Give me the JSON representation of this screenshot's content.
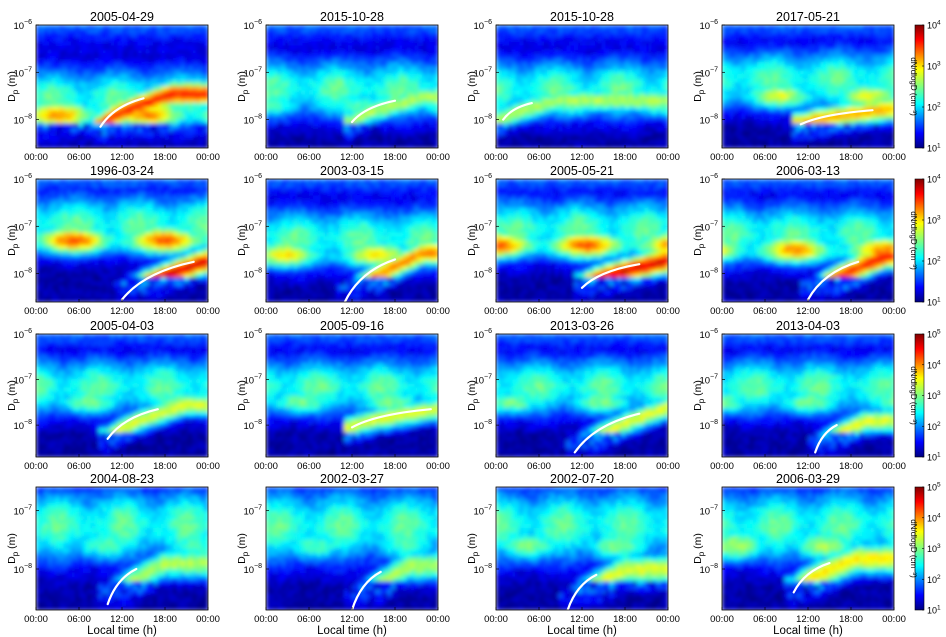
{
  "chart_data": {
    "type": "heatmap",
    "grid": "4x4",
    "x_tick_labels": [
      "00:00",
      "06:00",
      "12:00",
      "18:00",
      "00:00"
    ],
    "x_range_h": [
      0,
      24
    ],
    "xlabel": "Local time (h)",
    "ylabel_main": "D",
    "ylabel_sub": "p",
    "ylabel_unit": " (m)",
    "y_tick_base": "10",
    "y_scale": "log",
    "colorbar_label": "dN/dlogD (cm⁻³)",
    "colormap": "jet",
    "panels": [
      {
        "title": "2005-04-29",
        "y_ticks": [
          -6,
          -7,
          -8
        ],
        "ylim_exp": [
          -8.6,
          -6
        ],
        "band_exp": -7.9,
        "start_h": 9,
        "curve": [
          [
            9,
            -8.15
          ],
          [
            15,
            -7.55
          ]
        ],
        "hot": 0.85
      },
      {
        "title": "2015-10-28",
        "y_ticks": [
          -6,
          -7,
          -8
        ],
        "ylim_exp": [
          -8.6,
          -6
        ],
        "band_exp": -7.7,
        "start_h": 12,
        "curve": [
          [
            12,
            -8.05
          ],
          [
            18,
            -7.6
          ]
        ],
        "hot": 0.55
      },
      {
        "title": "2015-10-28",
        "y_ticks": [
          -6,
          -7,
          -8
        ],
        "ylim_exp": [
          -8.6,
          -6
        ],
        "band_exp": -7.7,
        "start_h": 1,
        "curve": [
          [
            1,
            -8.0
          ],
          [
            5,
            -7.65
          ]
        ],
        "hot": 0.55
      },
      {
        "title": "2017-05-21",
        "y_ticks": [
          -6,
          -7,
          -8
        ],
        "ylim_exp": [
          -8.6,
          -6
        ],
        "band_exp": -7.5,
        "start_h": 11,
        "curve": [
          [
            11,
            -8.1
          ],
          [
            21,
            -7.8
          ]
        ],
        "hot": 0.7
      },
      {
        "title": "1996-03-24",
        "y_ticks": [
          -6,
          -7,
          -8
        ],
        "ylim_exp": [
          -8.6,
          -6
        ],
        "band_exp": -7.3,
        "start_h": 12,
        "curve": [
          [
            12,
            -8.55
          ],
          [
            22,
            -7.75
          ]
        ],
        "hot": 0.9
      },
      {
        "title": "2003-03-15",
        "y_ticks": [
          -6,
          -7,
          -8
        ],
        "ylim_exp": [
          -8.6,
          -6
        ],
        "band_exp": -7.6,
        "start_h": 11,
        "curve": [
          [
            11,
            -8.6
          ],
          [
            18,
            -7.7
          ]
        ],
        "hot": 0.75
      },
      {
        "title": "2005-05-21",
        "y_ticks": [
          -6,
          -7,
          -8
        ],
        "ylim_exp": [
          -8.6,
          -6
        ],
        "band_exp": -7.4,
        "start_h": 12,
        "curve": [
          [
            12,
            -8.3
          ],
          [
            20,
            -7.8
          ]
        ],
        "hot": 0.9
      },
      {
        "title": "2006-03-13",
        "y_ticks": [
          -6,
          -7,
          -8
        ],
        "ylim_exp": [
          -8.6,
          -6
        ],
        "band_exp": -7.5,
        "start_h": 12,
        "curve": [
          [
            12,
            -8.55
          ],
          [
            19,
            -7.75
          ]
        ],
        "hot": 0.85
      },
      {
        "title": "2005-04-03",
        "y_ticks": [
          -6,
          -7,
          -8
        ],
        "ylim_exp": [
          -8.7,
          -6
        ],
        "band_exp": -7.5,
        "start_h": 10,
        "curve": [
          [
            10,
            -8.3
          ],
          [
            17,
            -7.65
          ]
        ],
        "hot": 0.6
      },
      {
        "title": "2005-09-16",
        "y_ticks": [
          -6,
          -7,
          -8
        ],
        "ylim_exp": [
          -8.7,
          -6
        ],
        "band_exp": -7.5,
        "start_h": 12,
        "curve": [
          [
            12,
            -8.05
          ],
          [
            23,
            -7.65
          ]
        ],
        "hot": 0.6
      },
      {
        "title": "2013-03-26",
        "y_ticks": [
          -6,
          -7,
          -8
        ],
        "ylim_exp": [
          -8.7,
          -6
        ],
        "band_exp": -7.5,
        "start_h": 11,
        "curve": [
          [
            11,
            -8.6
          ],
          [
            20,
            -7.75
          ]
        ],
        "hot": 0.6
      },
      {
        "title": "2013-04-03",
        "y_ticks": [
          -6,
          -7,
          -8
        ],
        "ylim_exp": [
          -8.7,
          -6
        ],
        "band_exp": -7.5,
        "start_h": 13,
        "curve": [
          [
            13,
            -8.6
          ],
          [
            16,
            -8.0
          ]
        ],
        "hot": 0.6
      },
      {
        "title": "2004-08-23",
        "y_ticks": [
          -7,
          -8
        ],
        "ylim_exp": [
          -8.7,
          -6.6
        ],
        "band_exp": -7.6,
        "start_h": 10,
        "curve": [
          [
            10,
            -8.6
          ],
          [
            14,
            -8.0
          ]
        ],
        "hot": 0.55
      },
      {
        "title": "2002-03-27",
        "y_ticks": [
          -7,
          -8
        ],
        "ylim_exp": [
          -8.7,
          -6.6
        ],
        "band_exp": -7.6,
        "start_h": 12,
        "curve": [
          [
            12,
            -8.7
          ],
          [
            16,
            -8.05
          ]
        ],
        "hot": 0.55
      },
      {
        "title": "2002-07-20",
        "y_ticks": [
          -7,
          -8
        ],
        "ylim_exp": [
          -8.7,
          -6.6
        ],
        "band_exp": -7.6,
        "start_h": 10,
        "curve": [
          [
            10,
            -8.7
          ],
          [
            14,
            -8.1
          ]
        ],
        "hot": 0.6
      },
      {
        "title": "2006-03-29",
        "y_ticks": [
          -7,
          -8
        ],
        "ylim_exp": [
          -8.7,
          -6.6
        ],
        "band_exp": -7.6,
        "start_h": 10,
        "curve": [
          [
            10,
            -8.4
          ],
          [
            15,
            -7.9
          ]
        ],
        "hot": 0.65
      }
    ],
    "colorbars": [
      {
        "ticks": [
          4,
          3,
          2,
          1
        ]
      },
      {
        "ticks": [
          4,
          3,
          2,
          1
        ]
      },
      {
        "ticks": [
          5,
          4,
          3,
          2,
          1
        ]
      },
      {
        "ticks": [
          5,
          4,
          3,
          2,
          1
        ]
      }
    ]
  }
}
